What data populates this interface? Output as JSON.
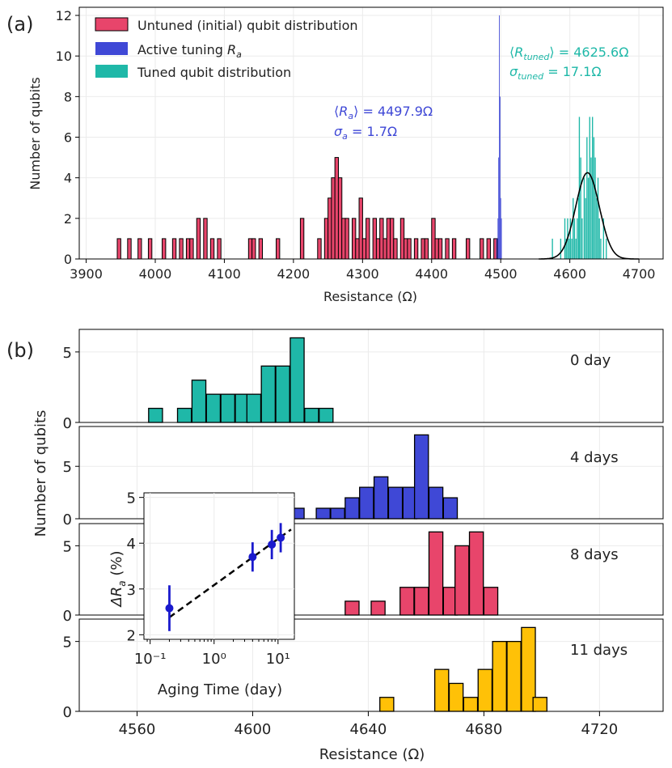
{
  "figure": {
    "label_a": "(a)",
    "label_b": "(b)"
  },
  "chart_data": [
    {
      "type": "bar",
      "panel": "a",
      "xlabel": "Resistance (Ω)",
      "ylabel": "Number of qubits",
      "xlim": [
        3890,
        4735
      ],
      "ylim": [
        0,
        12.4
      ],
      "xticks": [
        3900,
        4000,
        4100,
        4200,
        4300,
        4400,
        4500,
        4600,
        4700
      ],
      "yticks": [
        0,
        2,
        4,
        6,
        8,
        10,
        12
      ],
      "grid": true,
      "legend_position": "top-left",
      "legend": [
        "Untuned (initial) qubit distribution",
        "Active tuning R_a",
        "Tuned qubit distribution"
      ],
      "annotations": {
        "active_mean": "⟨R_a⟩ = 4497.9Ω",
        "active_sigma": "σ_a = 1.7Ω",
        "tuned_mean": "⟨R_tuned⟩ = 4625.6Ω",
        "tuned_sigma": "σ_tuned = 17.1Ω"
      },
      "series": [
        {
          "name": "Untuned (initial) qubit distribution",
          "color": "#E8456B",
          "bin_width": 5.1,
          "bins": [
            [
              3945,
              1
            ],
            [
              3960,
              1
            ],
            [
              3975,
              1
            ],
            [
              3990,
              1
            ],
            [
              4010,
              1
            ],
            [
              4025,
              1
            ],
            [
              4035,
              1
            ],
            [
              4045,
              1
            ],
            [
              4050,
              1
            ],
            [
              4060,
              2
            ],
            [
              4070,
              2
            ],
            [
              4080,
              1
            ],
            [
              4090,
              1
            ],
            [
              4135,
              1
            ],
            [
              4140,
              1
            ],
            [
              4150,
              1
            ],
            [
              4175,
              1
            ],
            [
              4210,
              2
            ],
            [
              4235,
              1
            ],
            [
              4245,
              2
            ],
            [
              4250,
              3
            ],
            [
              4255,
              4
            ],
            [
              4260,
              5
            ],
            [
              4265,
              4
            ],
            [
              4270,
              2
            ],
            [
              4275,
              2
            ],
            [
              4285,
              2
            ],
            [
              4290,
              1
            ],
            [
              4295,
              3
            ],
            [
              4300,
              1
            ],
            [
              4305,
              2
            ],
            [
              4315,
              2
            ],
            [
              4320,
              1
            ],
            [
              4325,
              2
            ],
            [
              4330,
              1
            ],
            [
              4335,
              2
            ],
            [
              4340,
              2
            ],
            [
              4345,
              1
            ],
            [
              4355,
              2
            ],
            [
              4360,
              1
            ],
            [
              4365,
              1
            ],
            [
              4375,
              1
            ],
            [
              4385,
              1
            ],
            [
              4390,
              1
            ],
            [
              4400,
              2
            ],
            [
              4405,
              1
            ],
            [
              4410,
              1
            ],
            [
              4420,
              1
            ],
            [
              4430,
              1
            ],
            [
              4450,
              1
            ],
            [
              4470,
              1
            ],
            [
              4480,
              1
            ],
            [
              4490,
              1
            ]
          ]
        },
        {
          "name": "Active tuning R_a",
          "color": "#3F48D6",
          "bin_width": 1.0,
          "bins": [
            [
              4493.5,
              1
            ],
            [
              4495.5,
              2
            ],
            [
              4496.5,
              5
            ],
            [
              4497.5,
              12
            ],
            [
              4498.5,
              8
            ],
            [
              4499.5,
              3
            ],
            [
              4500.5,
              2
            ]
          ]
        },
        {
          "name": "Tuned qubit distribution",
          "color": "#1FB8A8",
          "bin_width": 1.6,
          "bins": [
            [
              4574,
              1
            ],
            [
              4586,
              1
            ],
            [
              4592,
              2
            ],
            [
              4594,
              1
            ],
            [
              4596,
              2
            ],
            [
              4598,
              1
            ],
            [
              4600,
              2
            ],
            [
              4602,
              1
            ],
            [
              4604,
              3
            ],
            [
              4606,
              2
            ],
            [
              4608,
              1
            ],
            [
              4610,
              2
            ],
            [
              4612,
              3
            ],
            [
              4613,
              7
            ],
            [
              4615,
              5
            ],
            [
              4617,
              2
            ],
            [
              4620,
              4
            ],
            [
              4622,
              3
            ],
            [
              4624,
              6
            ],
            [
              4626,
              4
            ],
            [
              4628,
              7
            ],
            [
              4630,
              5
            ],
            [
              4632,
              7
            ],
            [
              4634,
              6
            ],
            [
              4636,
              5
            ],
            [
              4638,
              3
            ],
            [
              4640,
              4
            ],
            [
              4642,
              2
            ],
            [
              4644,
              1
            ],
            [
              4648,
              2
            ],
            [
              4652,
              1
            ]
          ]
        }
      ],
      "fit_curve": {
        "name": "Gaussian fit",
        "color": "#000000",
        "mean": 4625.6,
        "sigma": 17.1,
        "peak": 4.25
      }
    },
    {
      "type": "bar",
      "panel": "b",
      "xlabel": "Resistance (Ω)",
      "ylabel": "Number of qubits",
      "xlim": [
        4540,
        4742
      ],
      "xticks": [
        4560,
        4600,
        4640,
        4680,
        4720
      ],
      "bin_width": 4.8,
      "grid": true,
      "subplots": [
        {
          "label": "0 day",
          "color": "#1FB8A8",
          "ylim": [
            0,
            6.6
          ],
          "yticks": [
            0,
            5
          ],
          "bins": [
            [
              4564,
              1
            ],
            [
              4574,
              1
            ],
            [
              4579,
              3
            ],
            [
              4584,
              2
            ],
            [
              4589,
              2
            ],
            [
              4594,
              2
            ],
            [
              4598,
              2
            ],
            [
              4603,
              4
            ],
            [
              4608,
              4
            ],
            [
              4613,
              6
            ],
            [
              4618,
              1
            ],
            [
              4623,
              1
            ]
          ]
        },
        {
          "label": "4 days",
          "color": "#3F48D6",
          "ylim": [
            0,
            8.8
          ],
          "yticks": [
            0,
            5
          ],
          "bins": [
            [
              4613,
              1
            ],
            [
              4622,
              1
            ],
            [
              4627,
              1
            ],
            [
              4632,
              2
            ],
            [
              4637,
              3
            ],
            [
              4642,
              4
            ],
            [
              4647,
              3
            ],
            [
              4652,
              3
            ],
            [
              4656,
              8
            ],
            [
              4661,
              3
            ],
            [
              4666,
              2
            ]
          ]
        },
        {
          "label": "8 days",
          "color": "#E8456B",
          "ylim": [
            0,
            6.6
          ],
          "yticks": [
            0,
            5
          ],
          "bins": [
            [
              4632,
              1
            ],
            [
              4641,
              1
            ],
            [
              4651,
              2
            ],
            [
              4656,
              2
            ],
            [
              4661,
              6
            ],
            [
              4666,
              2
            ],
            [
              4670,
              5
            ],
            [
              4675,
              6
            ],
            [
              4680,
              2
            ]
          ]
        },
        {
          "label": "11 days",
          "color": "#FFC107",
          "ylim": [
            0,
            6.6
          ],
          "yticks": [
            0,
            5
          ],
          "bins": [
            [
              4644,
              1
            ],
            [
              4663,
              3
            ],
            [
              4668,
              2
            ],
            [
              4673,
              1
            ],
            [
              4678,
              3
            ],
            [
              4683,
              5
            ],
            [
              4688,
              5
            ],
            [
              4693,
              6
            ],
            [
              4697,
              1
            ]
          ]
        }
      ]
    },
    {
      "type": "scatter",
      "panel": "b-inset",
      "xlabel": "Aging Time (day)",
      "ylabel": "ΔR_a (%)",
      "xscale": "log",
      "xlim": [
        0.08,
        18
      ],
      "ylim": [
        1.9,
        5.1
      ],
      "yticks": [
        2,
        3,
        4,
        5
      ],
      "xtick_labels": [
        "10⁻¹",
        "10⁰",
        "10¹"
      ],
      "point_color": "#1A1ACD",
      "points": [
        {
          "x": 0.2,
          "y": 2.58,
          "err": 0.5
        },
        {
          "x": 4,
          "y": 3.7,
          "err": 0.32
        },
        {
          "x": 8,
          "y": 3.97,
          "err": 0.32
        },
        {
          "x": 11,
          "y": 4.12,
          "err": 0.32
        }
      ],
      "fit_line": {
        "color": "#000000",
        "style": "dashed",
        "x": [
          0.2,
          16
        ],
        "y": [
          2.38,
          4.3
        ]
      }
    }
  ]
}
